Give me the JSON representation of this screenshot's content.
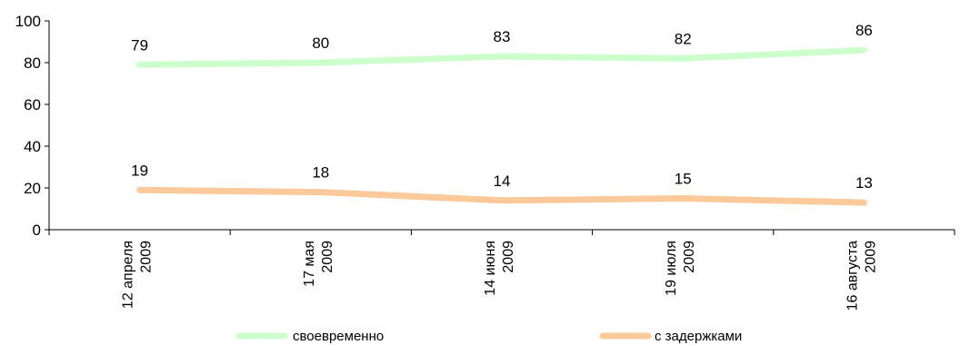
{
  "chart_data": {
    "type": "line",
    "title": "",
    "xlabel": "",
    "ylabel": "",
    "ylim": [
      0,
      100
    ],
    "yticks": [
      "0",
      "20",
      "40",
      "60",
      "80",
      "100"
    ],
    "categories": [
      [
        "12 апреля",
        "2009"
      ],
      [
        "17 мая",
        "2009"
      ],
      [
        "14 июня",
        "2009"
      ],
      [
        "19 июля",
        "2009"
      ],
      [
        "16 августа",
        "2009"
      ]
    ],
    "series": [
      {
        "name": "своевременно",
        "values": [
          79,
          80,
          83,
          82,
          86
        ],
        "labels": [
          "79",
          "80",
          "83",
          "82",
          "86"
        ],
        "color": "#ccffcc"
      },
      {
        "name": "с задержками",
        "values": [
          19,
          18,
          14,
          15,
          13
        ],
        "labels": [
          "19",
          "18",
          "14",
          "15",
          "13"
        ],
        "color": "#fcc99a"
      }
    ],
    "grid": false,
    "legend": "bottom"
  }
}
